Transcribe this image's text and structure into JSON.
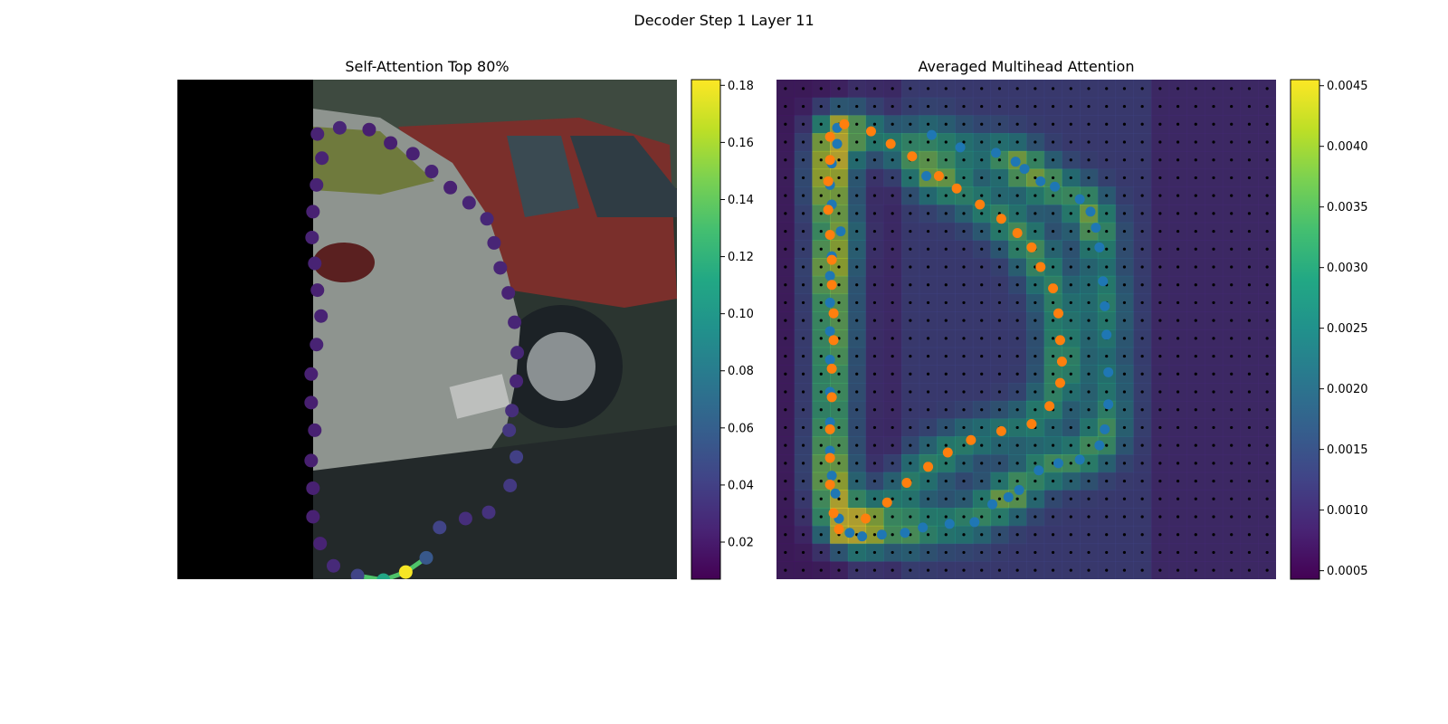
{
  "figure": {
    "suptitle": "Decoder Step 1 Layer 11"
  },
  "chart_data": [
    {
      "type": "scatter",
      "title": "Self-Attention Top 80%",
      "description_of_background": "photo of parked silver hatchback with red car behind, left ~27% black",
      "xlim": [
        0,
        56
      ],
      "ylim": [
        56,
        0
      ],
      "colormap": "viridis",
      "colorbar": {
        "min": 0.007,
        "max": 0.182,
        "ticks": [
          0.02,
          0.04,
          0.06,
          0.08,
          0.1,
          0.12,
          0.14,
          0.16,
          0.18
        ],
        "tick_labels": [
          "0.02",
          "0.04",
          "0.06",
          "0.08",
          "0.10",
          "0.12",
          "0.14",
          "0.16",
          "0.18"
        ]
      },
      "points": [
        {
          "x": 18.2,
          "y": 5.4,
          "v": 0.025
        },
        {
          "x": 15.7,
          "y": 6.1,
          "v": 0.024
        },
        {
          "x": 21.5,
          "y": 5.6,
          "v": 0.022
        },
        {
          "x": 23.9,
          "y": 7.1,
          "v": 0.022
        },
        {
          "x": 26.4,
          "y": 8.3,
          "v": 0.023
        },
        {
          "x": 28.5,
          "y": 10.3,
          "v": 0.024
        },
        {
          "x": 30.6,
          "y": 12.1,
          "v": 0.023
        },
        {
          "x": 32.7,
          "y": 13.8,
          "v": 0.025
        },
        {
          "x": 34.7,
          "y": 15.6,
          "v": 0.026
        },
        {
          "x": 35.5,
          "y": 18.3,
          "v": 0.025
        },
        {
          "x": 36.2,
          "y": 21.1,
          "v": 0.025
        },
        {
          "x": 37.1,
          "y": 23.9,
          "v": 0.024
        },
        {
          "x": 37.8,
          "y": 27.2,
          "v": 0.025
        },
        {
          "x": 38.1,
          "y": 30.6,
          "v": 0.026
        },
        {
          "x": 38.0,
          "y": 33.8,
          "v": 0.025
        },
        {
          "x": 37.5,
          "y": 37.1,
          "v": 0.03
        },
        {
          "x": 37.2,
          "y": 39.3,
          "v": 0.035
        },
        {
          "x": 38.0,
          "y": 42.3,
          "v": 0.04
        },
        {
          "x": 37.3,
          "y": 45.5,
          "v": 0.036
        },
        {
          "x": 34.9,
          "y": 48.5,
          "v": 0.032
        },
        {
          "x": 32.3,
          "y": 49.2,
          "v": 0.03
        },
        {
          "x": 29.4,
          "y": 50.2,
          "v": 0.042
        },
        {
          "x": 27.9,
          "y": 53.6,
          "v": 0.055
        },
        {
          "x": 25.6,
          "y": 55.2,
          "v": 0.18
        },
        {
          "x": 23.1,
          "y": 56.1,
          "v": 0.11
        },
        {
          "x": 20.2,
          "y": 55.6,
          "v": 0.042
        },
        {
          "x": 17.5,
          "y": 54.5,
          "v": 0.028
        },
        {
          "x": 16.0,
          "y": 52.0,
          "v": 0.024
        },
        {
          "x": 15.2,
          "y": 49.0,
          "v": 0.023
        },
        {
          "x": 15.2,
          "y": 45.8,
          "v": 0.023
        },
        {
          "x": 15.0,
          "y": 42.7,
          "v": 0.022
        },
        {
          "x": 15.4,
          "y": 39.3,
          "v": 0.023
        },
        {
          "x": 15.0,
          "y": 36.2,
          "v": 0.022
        },
        {
          "x": 15.0,
          "y": 33.0,
          "v": 0.023
        },
        {
          "x": 15.6,
          "y": 29.7,
          "v": 0.024
        },
        {
          "x": 16.1,
          "y": 26.5,
          "v": 0.024
        },
        {
          "x": 15.7,
          "y": 23.6,
          "v": 0.023
        },
        {
          "x": 15.4,
          "y": 20.6,
          "v": 0.024
        },
        {
          "x": 15.1,
          "y": 17.7,
          "v": 0.024
        },
        {
          "x": 15.2,
          "y": 14.8,
          "v": 0.023
        },
        {
          "x": 15.6,
          "y": 11.8,
          "v": 0.024
        },
        {
          "x": 16.2,
          "y": 8.8,
          "v": 0.024
        }
      ],
      "highlight_path": [
        {
          "x": 20.2,
          "y": 55.6
        },
        {
          "x": 23.1,
          "y": 56.1
        },
        {
          "x": 25.6,
          "y": 55.2
        },
        {
          "x": 27.9,
          "y": 53.6
        }
      ]
    },
    {
      "type": "heatmap",
      "title": "Averaged Multihead Attention",
      "description_of_background": "same photo, darkened, overlaid with 28x28 attention grid",
      "grid_size": 28,
      "colormap": "viridis",
      "colorbar": {
        "min": 0.00043,
        "max": 0.00455,
        "ticks": [
          0.0005,
          0.001,
          0.0015,
          0.002,
          0.0025,
          0.003,
          0.0035,
          0.004,
          0.0045
        ],
        "tick_labels": [
          "0.0005",
          "0.0010",
          "0.0015",
          "0.0020",
          "0.0025",
          "0.0030",
          "0.0035",
          "0.0040",
          "0.0045"
        ]
      },
      "blue_points": [
        [
          8.2,
          2.6
        ],
        [
          7.9,
          4.9
        ],
        [
          9.8,
          3.3
        ],
        [
          11.8,
          3.6
        ],
        [
          12.9,
          4.1
        ],
        [
          13.4,
          4.5
        ],
        [
          14.3,
          5.2
        ],
        [
          15.1,
          5.5
        ],
        [
          16.5,
          6.2
        ],
        [
          17.1,
          6.9
        ],
        [
          17.4,
          7.8
        ],
        [
          17.6,
          8.9
        ],
        [
          17.8,
          10.8
        ],
        [
          17.9,
          12.2
        ],
        [
          18.0,
          13.8
        ],
        [
          18.1,
          15.9
        ],
        [
          18.1,
          17.7
        ],
        [
          17.9,
          19.1
        ],
        [
          17.6,
          20.0
        ],
        [
          16.5,
          20.8
        ],
        [
          15.3,
          21.0
        ],
        [
          14.2,
          21.4
        ],
        [
          13.1,
          22.5
        ],
        [
          12.5,
          22.9
        ],
        [
          11.6,
          23.3
        ],
        [
          10.6,
          24.3
        ],
        [
          9.2,
          24.4
        ],
        [
          7.7,
          24.6
        ],
        [
          6.7,
          24.9
        ],
        [
          5.4,
          25.0
        ],
        [
          4.3,
          25.1
        ],
        [
          3.6,
          24.9
        ],
        [
          3.0,
          24.1
        ],
        [
          2.8,
          22.7
        ],
        [
          2.6,
          21.7
        ],
        [
          2.5,
          20.3
        ],
        [
          2.5,
          18.7
        ],
        [
          2.5,
          17.0
        ],
        [
          2.5,
          15.2
        ],
        [
          2.5,
          13.6
        ],
        [
          2.5,
          12.0
        ],
        [
          2.5,
          10.5
        ],
        [
          2.6,
          9.4
        ],
        [
          3.1,
          8.0
        ],
        [
          2.6,
          6.5
        ],
        [
          2.5,
          5.4
        ],
        [
          2.6,
          4.2
        ],
        [
          2.9,
          3.1
        ],
        [
          2.9,
          2.2
        ]
      ],
      "orange_points": [
        [
          3.3,
          2.0
        ],
        [
          4.8,
          2.4
        ],
        [
          5.9,
          3.1
        ],
        [
          7.1,
          3.8
        ],
        [
          8.6,
          4.9
        ],
        [
          9.6,
          5.6
        ],
        [
          10.9,
          6.5
        ],
        [
          12.1,
          7.3
        ],
        [
          13.0,
          8.1
        ],
        [
          13.8,
          8.9
        ],
        [
          14.3,
          10.0
        ],
        [
          15.0,
          11.2
        ],
        [
          15.3,
          12.6
        ],
        [
          15.4,
          14.1
        ],
        [
          15.5,
          15.3
        ],
        [
          15.4,
          16.5
        ],
        [
          14.8,
          17.8
        ],
        [
          13.8,
          18.8
        ],
        [
          12.1,
          19.2
        ],
        [
          10.4,
          19.7
        ],
        [
          9.1,
          20.4
        ],
        [
          8.0,
          21.2
        ],
        [
          6.8,
          22.1
        ],
        [
          5.7,
          23.2
        ],
        [
          4.5,
          24.1
        ],
        [
          3.0,
          24.7
        ],
        [
          2.7,
          23.8
        ],
        [
          2.5,
          22.2
        ],
        [
          2.5,
          20.7
        ],
        [
          2.5,
          19.1
        ],
        [
          2.6,
          17.3
        ],
        [
          2.6,
          15.7
        ],
        [
          2.7,
          14.1
        ],
        [
          2.7,
          12.6
        ],
        [
          2.6,
          11.0
        ],
        [
          2.6,
          9.6
        ],
        [
          2.5,
          8.2
        ],
        [
          2.4,
          6.8
        ],
        [
          2.4,
          5.2
        ],
        [
          2.5,
          4.0
        ],
        [
          2.5,
          2.7
        ]
      ]
    }
  ]
}
